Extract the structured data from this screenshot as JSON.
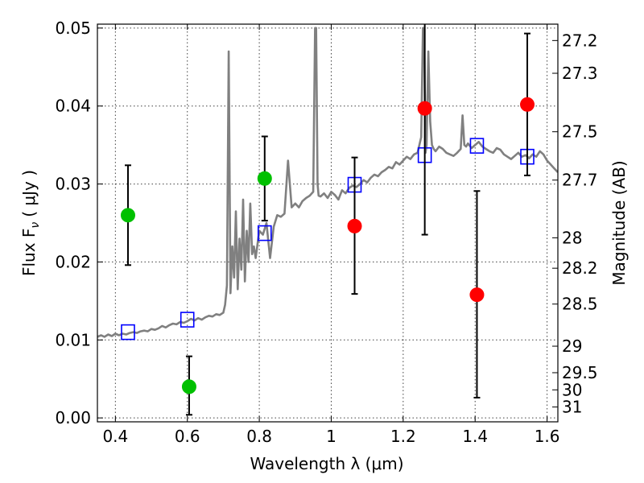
{
  "chart_data": {
    "type": "scatter",
    "title": "",
    "xlabel": "Wavelength  λ (μm)",
    "ylabel": "Flux  F",
    "ylabel_sub": "ν",
    "ylabel_unit": "(  μJy )",
    "y2label": "Magnitude (AB)",
    "xlim": [
      0.35,
      1.63
    ],
    "ylim": [
      -0.0005,
      0.0505
    ],
    "x_ticks": [
      0.4,
      0.6,
      0.8,
      1.0,
      1.2,
      1.4,
      1.6
    ],
    "x_tick_labels": [
      "0.4",
      "0.6",
      "0.8",
      "1",
      "1.2",
      "1.4",
      "1.6"
    ],
    "y_ticks": [
      0.0,
      0.01,
      0.02,
      0.03,
      0.04,
      0.05
    ],
    "y_tick_labels": [
      "0.00",
      "0.01",
      "0.02",
      "0.03",
      "0.04",
      "0.05"
    ],
    "y2_ticks": [
      {
        "label": "27.2",
        "flux": 0.0484
      },
      {
        "label": "27.3",
        "flux": 0.0442
      },
      {
        "label": "27.5",
        "flux": 0.0367
      },
      {
        "label": "27.7",
        "flux": 0.0305
      },
      {
        "label": "28",
        "flux": 0.0231
      },
      {
        "label": "28.2",
        "flux": 0.0192
      },
      {
        "label": "28.5",
        "flux": 0.0146
      },
      {
        "label": "29",
        "flux": 0.0092
      },
      {
        "label": "29.5",
        "flux": 0.0058
      },
      {
        "label": "30",
        "flux": 0.0036
      },
      {
        "label": "31",
        "flux": 0.0014
      }
    ],
    "grid": true,
    "colors": {
      "model": "#808080",
      "model_photometry": "#0000ff",
      "observed_green": "#00c000",
      "observed_red": "#ff0000",
      "errorbar": "#000000"
    },
    "series": [
      {
        "name": "model_spectrum",
        "type": "line",
        "x": [
          0.35,
          0.36,
          0.37,
          0.38,
          0.39,
          0.4,
          0.41,
          0.42,
          0.43,
          0.44,
          0.45,
          0.46,
          0.47,
          0.48,
          0.49,
          0.5,
          0.51,
          0.52,
          0.53,
          0.54,
          0.55,
          0.56,
          0.57,
          0.58,
          0.59,
          0.6,
          0.61,
          0.62,
          0.63,
          0.64,
          0.65,
          0.66,
          0.67,
          0.68,
          0.69,
          0.7,
          0.705,
          0.71,
          0.715,
          0.72,
          0.725,
          0.73,
          0.735,
          0.74,
          0.745,
          0.75,
          0.755,
          0.76,
          0.765,
          0.77,
          0.775,
          0.78,
          0.785,
          0.79,
          0.8,
          0.81,
          0.82,
          0.83,
          0.84,
          0.85,
          0.86,
          0.87,
          0.88,
          0.89,
          0.9,
          0.91,
          0.92,
          0.93,
          0.94,
          0.95,
          0.955,
          0.958,
          0.962,
          0.965,
          0.97,
          0.98,
          0.99,
          1.0,
          1.01,
          1.02,
          1.03,
          1.04,
          1.05,
          1.06,
          1.07,
          1.08,
          1.09,
          1.1,
          1.11,
          1.12,
          1.13,
          1.14,
          1.15,
          1.16,
          1.17,
          1.18,
          1.19,
          1.2,
          1.21,
          1.22,
          1.23,
          1.24,
          1.25,
          1.255,
          1.258,
          1.262,
          1.265,
          1.27,
          1.275,
          1.28,
          1.285,
          1.29,
          1.3,
          1.31,
          1.32,
          1.33,
          1.34,
          1.35,
          1.36,
          1.365,
          1.37,
          1.375,
          1.38,
          1.39,
          1.4,
          1.41,
          1.42,
          1.43,
          1.44,
          1.45,
          1.46,
          1.47,
          1.48,
          1.49,
          1.5,
          1.51,
          1.52,
          1.53,
          1.54,
          1.55,
          1.56,
          1.57,
          1.58,
          1.59,
          1.6,
          1.61,
          1.62,
          1.63
        ],
        "y": [
          0.0104,
          0.0106,
          0.0104,
          0.0107,
          0.0105,
          0.0108,
          0.0106,
          0.0108,
          0.0107,
          0.0109,
          0.011,
          0.0109,
          0.0111,
          0.0112,
          0.0111,
          0.0114,
          0.0113,
          0.0115,
          0.0118,
          0.0116,
          0.0119,
          0.0121,
          0.012,
          0.0123,
          0.0122,
          0.0124,
          0.0127,
          0.0125,
          0.0128,
          0.0126,
          0.0129,
          0.0131,
          0.013,
          0.0133,
          0.0132,
          0.0135,
          0.0145,
          0.017,
          0.047,
          0.016,
          0.022,
          0.018,
          0.0265,
          0.0165,
          0.023,
          0.019,
          0.028,
          0.0175,
          0.024,
          0.02,
          0.0275,
          0.021,
          0.022,
          0.0205,
          0.024,
          0.0235,
          0.025,
          0.0205,
          0.0245,
          0.026,
          0.0258,
          0.0262,
          0.033,
          0.027,
          0.0275,
          0.027,
          0.0278,
          0.0282,
          0.0285,
          0.029,
          0.05,
          0.05,
          0.03,
          0.0285,
          0.0284,
          0.0288,
          0.0282,
          0.029,
          0.0286,
          0.028,
          0.0292,
          0.0288,
          0.0295,
          0.0298,
          0.0296,
          0.03,
          0.0305,
          0.0302,
          0.0308,
          0.0312,
          0.031,
          0.0315,
          0.0318,
          0.0322,
          0.032,
          0.0328,
          0.0325,
          0.033,
          0.0335,
          0.0332,
          0.0338,
          0.034,
          0.036,
          0.05,
          0.05,
          0.034,
          0.035,
          0.047,
          0.038,
          0.035,
          0.0345,
          0.0342,
          0.0348,
          0.0345,
          0.034,
          0.0338,
          0.0336,
          0.034,
          0.0345,
          0.0388,
          0.035,
          0.0348,
          0.0352,
          0.0346,
          0.035,
          0.0354,
          0.0348,
          0.0345,
          0.0342,
          0.034,
          0.0346,
          0.0344,
          0.0338,
          0.0335,
          0.0332,
          0.0336,
          0.034,
          0.0335,
          0.0337,
          0.0333,
          0.0338,
          0.0335,
          0.0342,
          0.0338,
          0.033,
          0.0325,
          0.032,
          0.0315
        ]
      },
      {
        "name": "model_photometry",
        "type": "scatter",
        "marker": "square",
        "x": [
          0.435,
          0.6,
          0.815,
          1.065,
          1.26,
          1.405,
          1.545
        ],
        "y": [
          0.011,
          0.0126,
          0.0237,
          0.0299,
          0.0337,
          0.0349,
          0.0335
        ]
      },
      {
        "name": "observed_green",
        "type": "scatter",
        "marker": "circle",
        "x": [
          0.435,
          0.605,
          0.815
        ],
        "y": [
          0.026,
          0.004,
          0.0307
        ],
        "yerr_low": [
          0.0196,
          0.0004,
          0.0253
        ],
        "yerr_high": [
          0.0324,
          0.0079,
          0.0361
        ]
      },
      {
        "name": "observed_red",
        "type": "scatter",
        "marker": "circle",
        "x": [
          1.065,
          1.26,
          1.405,
          1.545
        ],
        "y": [
          0.0246,
          0.0397,
          0.0158,
          0.0402
        ],
        "yerr_low": [
          0.0159,
          0.0235,
          0.0026,
          0.0311
        ],
        "yerr_high": [
          0.0334,
          0.051,
          0.0291,
          0.0493
        ]
      }
    ]
  }
}
